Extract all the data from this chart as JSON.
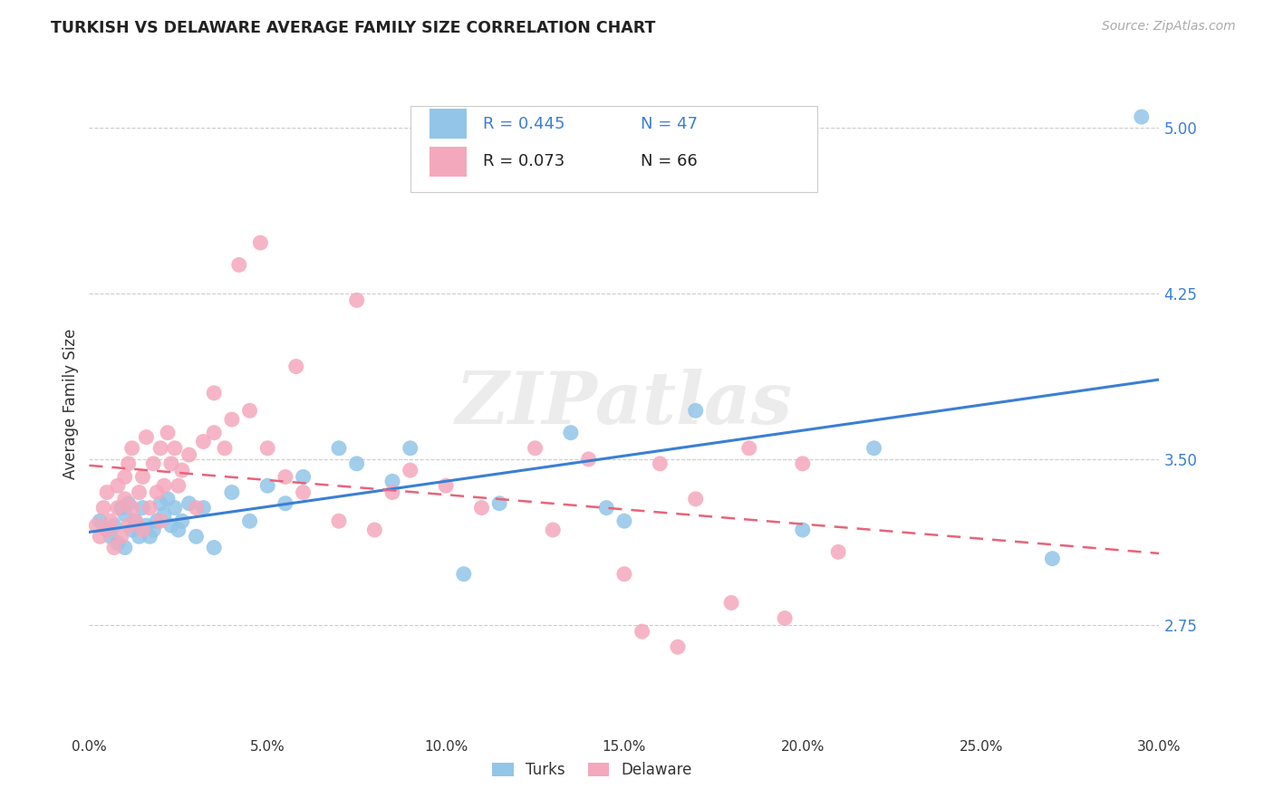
{
  "title": "TURKISH VS DELAWARE AVERAGE FAMILY SIZE CORRELATION CHART",
  "source": "Source: ZipAtlas.com",
  "ylabel": "Average Family Size",
  "yticks": [
    2.75,
    3.5,
    4.25,
    5.0
  ],
  "ytick_labels": [
    "2.75",
    "3.50",
    "4.25",
    "5.00"
  ],
  "xlim": [
    0,
    30
  ],
  "ylim": [
    2.25,
    5.25
  ],
  "blue_R": "R = 0.445",
  "blue_N": "N = 47",
  "pink_R": "R = 0.073",
  "pink_N": "N = 66",
  "blue_color": "#92c5e8",
  "pink_color": "#f4a8bc",
  "blue_line_color": "#3a7fd4",
  "pink_line_color": "#e8637a",
  "legend_label_blue": "Turks",
  "legend_label_pink": "Delaware",
  "watermark": "ZIPatlas",
  "blue_points_x": [
    0.3,
    0.5,
    0.6,
    0.7,
    0.8,
    0.9,
    1.0,
    1.0,
    1.1,
    1.2,
    1.3,
    1.4,
    1.5,
    1.6,
    1.7,
    1.8,
    1.9,
    2.0,
    2.1,
    2.2,
    2.3,
    2.4,
    2.5,
    2.6,
    2.8,
    3.0,
    3.2,
    3.5,
    4.0,
    4.5,
    5.0,
    5.5,
    6.0,
    7.0,
    7.5,
    8.5,
    9.0,
    10.5,
    11.5,
    13.5,
    14.5,
    15.0,
    17.0,
    20.0,
    22.0,
    27.0,
    29.5
  ],
  "blue_points_y": [
    3.22,
    3.18,
    3.15,
    3.2,
    3.12,
    3.28,
    3.25,
    3.1,
    3.3,
    3.18,
    3.22,
    3.15,
    3.28,
    3.2,
    3.15,
    3.18,
    3.22,
    3.3,
    3.25,
    3.32,
    3.2,
    3.28,
    3.18,
    3.22,
    3.3,
    3.15,
    3.28,
    3.1,
    3.35,
    3.22,
    3.38,
    3.3,
    3.42,
    3.55,
    3.48,
    3.4,
    3.55,
    2.98,
    3.3,
    3.62,
    3.28,
    3.22,
    3.72,
    3.18,
    3.55,
    3.05,
    5.05
  ],
  "pink_points_x": [
    0.2,
    0.3,
    0.4,
    0.5,
    0.5,
    0.6,
    0.7,
    0.8,
    0.8,
    0.9,
    1.0,
    1.0,
    1.1,
    1.1,
    1.2,
    1.2,
    1.3,
    1.4,
    1.5,
    1.5,
    1.6,
    1.7,
    1.8,
    1.9,
    2.0,
    2.0,
    2.1,
    2.2,
    2.3,
    2.4,
    2.5,
    2.6,
    2.8,
    3.0,
    3.2,
    3.5,
    3.8,
    4.0,
    4.5,
    5.0,
    5.5,
    6.0,
    7.0,
    8.0,
    9.0,
    10.0,
    11.0,
    12.5,
    14.0,
    15.0,
    16.0,
    17.0,
    18.5,
    20.0,
    4.2,
    4.8,
    7.5,
    13.0,
    15.5,
    18.0,
    19.5,
    21.0,
    3.5,
    5.8,
    8.5,
    16.5
  ],
  "pink_points_y": [
    3.2,
    3.15,
    3.28,
    3.18,
    3.35,
    3.22,
    3.1,
    3.28,
    3.38,
    3.15,
    3.32,
    3.42,
    3.2,
    3.48,
    3.28,
    3.55,
    3.22,
    3.35,
    3.18,
    3.42,
    3.6,
    3.28,
    3.48,
    3.35,
    3.22,
    3.55,
    3.38,
    3.62,
    3.48,
    3.55,
    3.38,
    3.45,
    3.52,
    3.28,
    3.58,
    3.62,
    3.55,
    3.68,
    3.72,
    3.55,
    3.42,
    3.35,
    3.22,
    3.18,
    3.45,
    3.38,
    3.28,
    3.55,
    3.5,
    2.98,
    3.48,
    3.32,
    3.55,
    3.48,
    4.38,
    4.48,
    4.22,
    3.18,
    2.72,
    2.85,
    2.78,
    3.08,
    3.8,
    3.92,
    3.35,
    2.65
  ]
}
